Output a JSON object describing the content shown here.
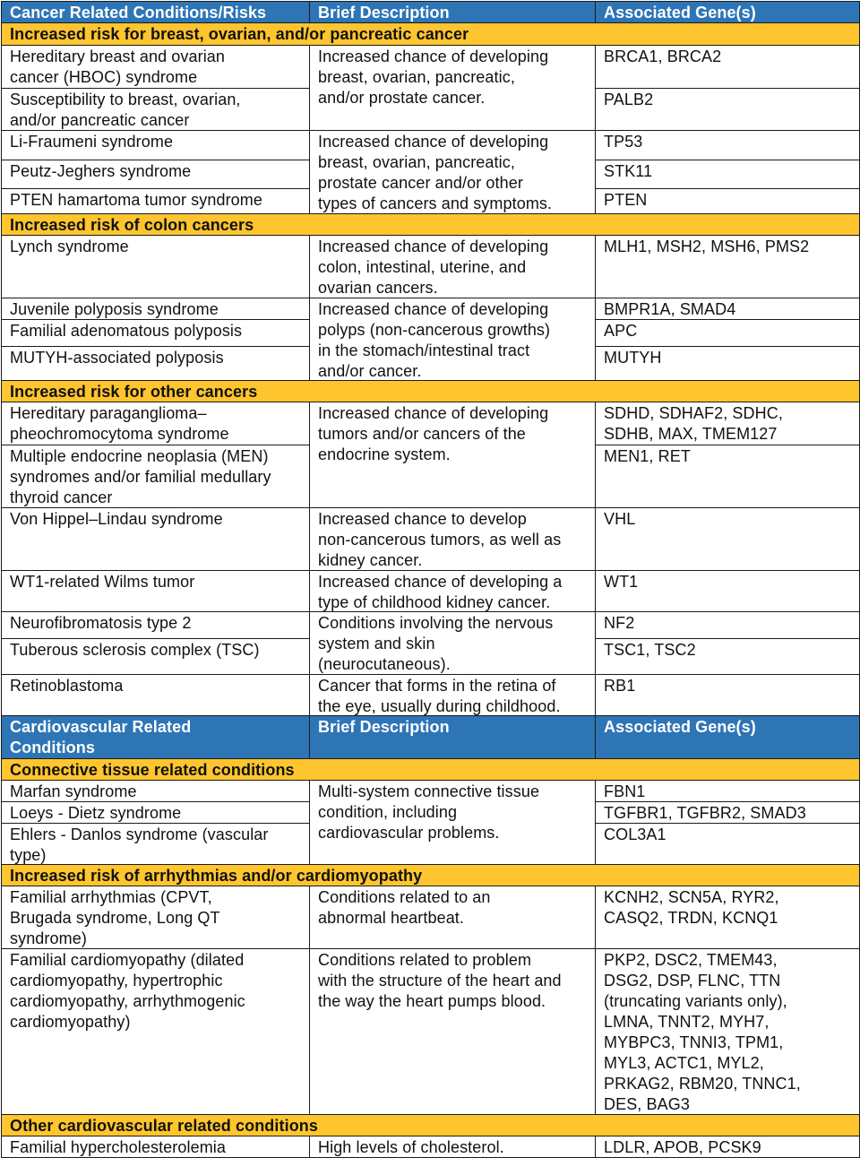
{
  "colors": {
    "header_blue": "#2e75b6",
    "band_yellow": "#fec52e"
  },
  "cancer": {
    "header": [
      "Cancer Related Conditions/Risks",
      "Brief Description",
      "Associated Gene(s)"
    ],
    "groups": [
      {
        "title": "Increased risk for breast, ovarian, and/or pancreatic cancer",
        "conditions": [
          "Hereditary breast and ovarian\ncancer (HBOC) syndrome",
          "Susceptibility to breast, ovarian,\nand/or pancreatic cancer",
          "Li-Fraumeni syndrome",
          "Peutz-Jeghers syndrome",
          "PTEN hamartoma tumor syndrome"
        ],
        "descriptions": [
          "Increased chance of developing\nbreast, ovarian, pancreatic,\nand/or prostate cancer.",
          "Increased chance of developing\nbreast, ovarian, pancreatic,\nprostate cancer and/or other\ntypes of cancers and symptoms."
        ],
        "genes": [
          "BRCA1, BRCA2",
          "PALB2",
          "TP53",
          "STK11",
          "PTEN"
        ]
      },
      {
        "title": "Increased risk of colon cancers",
        "conditions": [
          "Lynch syndrome",
          "Juvenile polyposis syndrome",
          "Familial adenomatous polyposis",
          "MUTYH-associated polyposis"
        ],
        "descriptions": [
          "Increased chance of developing\ncolon, intestinal, uterine, and\novarian cancers.",
          "Increased chance of developing\npolyps (non-cancerous growths)\nin the stomach/intestinal tract\nand/or cancer."
        ],
        "genes": [
          "MLH1, MSH2, MSH6, PMS2",
          "BMPR1A, SMAD4",
          "APC",
          "MUTYH"
        ]
      },
      {
        "title": "Increased risk for other cancers",
        "conditions": [
          "Hereditary paraganglioma–\npheochromocytoma syndrome",
          "Multiple endocrine neoplasia (MEN)\nsyndromes and/or familial medullary\nthyroid cancer",
          "Von Hippel–Lindau syndrome",
          "WT1-related Wilms tumor",
          "Neurofibromatosis type 2",
          "Tuberous sclerosis complex (TSC)",
          "Retinoblastoma"
        ],
        "descriptions": [
          "Increased chance of developing\ntumors and/or cancers of the\nendocrine system.",
          "Increased chance to develop\nnon-cancerous tumors, as well as\nkidney cancer.",
          "Increased chance of developing a\ntype of childhood kidney cancer.",
          "Conditions involving the nervous\nsystem and skin\n(neurocutaneous).",
          "Cancer that forms in the retina of\nthe eye, usually during childhood."
        ],
        "genes": [
          "SDHD, SDHAF2, SDHC,\nSDHB, MAX, TMEM127",
          "MEN1, RET",
          "VHL",
          "WT1",
          "NF2",
          "TSC1, TSC2",
          "RB1"
        ]
      }
    ]
  },
  "cardio": {
    "header": [
      "Cardiovascular Related\nConditions",
      "Brief Description",
      "Associated Gene(s)"
    ],
    "groups": [
      {
        "title": "Connective tissue related conditions",
        "conditions": [
          "Marfan syndrome",
          "Loeys - Dietz syndrome",
          "Ehlers - Danlos syndrome (vascular\ntype)"
        ],
        "descriptions": [
          "Multi-system connective tissue\ncondition, including\ncardiovascular problems."
        ],
        "genes": [
          "FBN1",
          "TGFBR1, TGFBR2, SMAD3",
          "COL3A1"
        ]
      },
      {
        "title": "Increased risk of arrhythmias and/or cardiomyopathy",
        "conditions": [
          "Familial arrhythmias (CPVT,\nBrugada syndrome, Long QT\nsyndrome)",
          "Familial cardiomyopathy (dilated\ncardiomyopathy, hypertrophic\ncardiomyopathy, arrhythmogenic\ncardiomyopathy)"
        ],
        "descriptions": [
          "Conditions related to an\nabnormal heartbeat.",
          "Conditions related to problem\nwith the structure of the heart and\nthe way the heart pumps blood."
        ],
        "genes": [
          "KCNH2, SCN5A, RYR2,\nCASQ2, TRDN, KCNQ1",
          "PKP2, DSC2, TMEM43,\nDSG2, DSP, FLNC, TTN\n(truncating variants only),\nLMNA, TNNT2, MYH7,\nMYBPC3, TNNI3, TPM1,\nMYL3, ACTC1, MYL2,\nPRKAG2, RBM20, TNNC1,\nDES, BAG3"
        ]
      },
      {
        "title": "Other cardiovascular related conditions",
        "conditions": [
          "Familial hypercholesterolemia"
        ],
        "descriptions": [
          "High levels of cholesterol."
        ],
        "genes": [
          "LDLR, APOB, PCSK9"
        ]
      }
    ]
  }
}
